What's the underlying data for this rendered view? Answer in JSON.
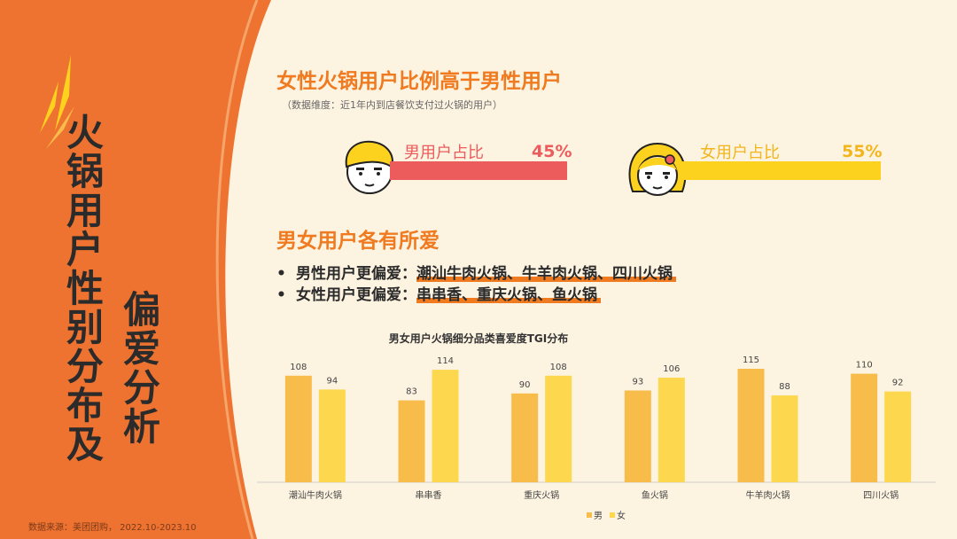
{
  "left_panel": {
    "title_line1": "火锅用户性别分布及",
    "title_line2": "偏爱分析",
    "source": "数据来源：美团团购， 2022.10-2023.10"
  },
  "section1": {
    "heading": "女性火锅用户比例高于男性用户",
    "subtitle": "（数据维度：近1年内到店餐饮支付过火锅的用户）",
    "male": {
      "label": "男用户占比",
      "percent": "45%",
      "value": 45
    },
    "female": {
      "label": "女用户占比",
      "percent": "55%",
      "value": 55
    },
    "colors": {
      "male": "#ec5c5c",
      "female": "#fdd21f"
    }
  },
  "section2": {
    "heading": "男女用户各有所爱",
    "male_prefix": "男性用户更偏爱：",
    "male_items": "潮汕牛肉火锅、牛羊肉火锅、四川火锅",
    "female_prefix": "女性用户更偏爱：",
    "female_items": "串串香、重庆火锅、鱼火锅"
  },
  "chart_data": {
    "type": "bar",
    "title": "男女用户火锅细分品类喜爱度TGI分布",
    "categories": [
      "潮汕牛肉火锅",
      "串串香",
      "重庆火锅",
      "鱼火锅",
      "牛羊肉火锅",
      "四川火锅"
    ],
    "series": [
      {
        "name": "男",
        "values": [
          108,
          83,
          90,
          93,
          115,
          110
        ],
        "color": "#f7bc4a"
      },
      {
        "name": "女",
        "values": [
          94,
          114,
          108,
          106,
          88,
          92
        ],
        "color": "#fdd84e"
      }
    ],
    "ylim": [
      0,
      115
    ],
    "legend": "bottom-right"
  }
}
